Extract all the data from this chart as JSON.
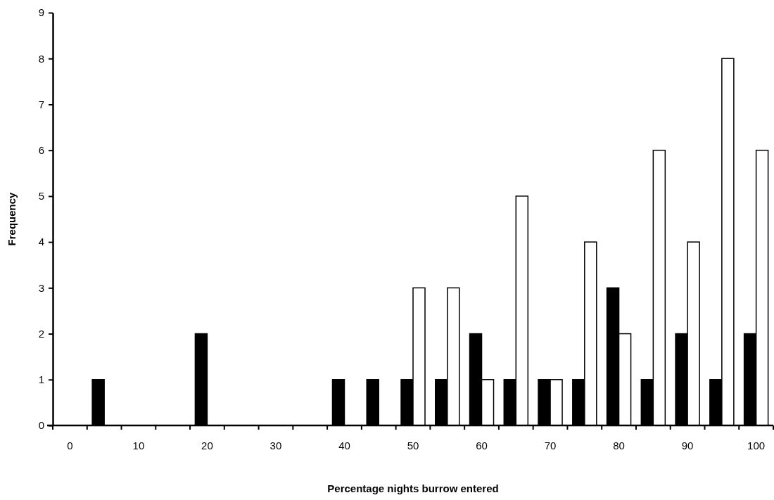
{
  "chart_data": {
    "type": "bar",
    "xlabel": "Percentage  nights  burrow entered",
    "ylabel": "Frequency",
    "categories": [
      "0",
      null,
      "10",
      null,
      "20",
      null,
      "30",
      null,
      "40",
      null,
      "50",
      null,
      "60",
      null,
      "70",
      null,
      "80",
      null,
      "90",
      null,
      "100"
    ],
    "series": [
      {
        "color": "#000000",
        "values": [
          0,
          1,
          0,
          0,
          2,
          0,
          0,
          0,
          1,
          1,
          1,
          1,
          2,
          1,
          1,
          1,
          3,
          1,
          2,
          1,
          2
        ]
      },
      {
        "color": "#ffffff",
        "values": [
          0,
          0,
          0,
          0,
          0,
          0,
          0,
          0,
          0,
          0,
          3,
          3,
          1,
          5,
          1,
          4,
          2,
          6,
          4,
          8,
          6
        ]
      }
    ],
    "ylim": [
      0,
      9
    ],
    "yticks": [
      0,
      1,
      2,
      3,
      4,
      5,
      6,
      7,
      8,
      9
    ],
    "grid": false,
    "legend": false
  }
}
